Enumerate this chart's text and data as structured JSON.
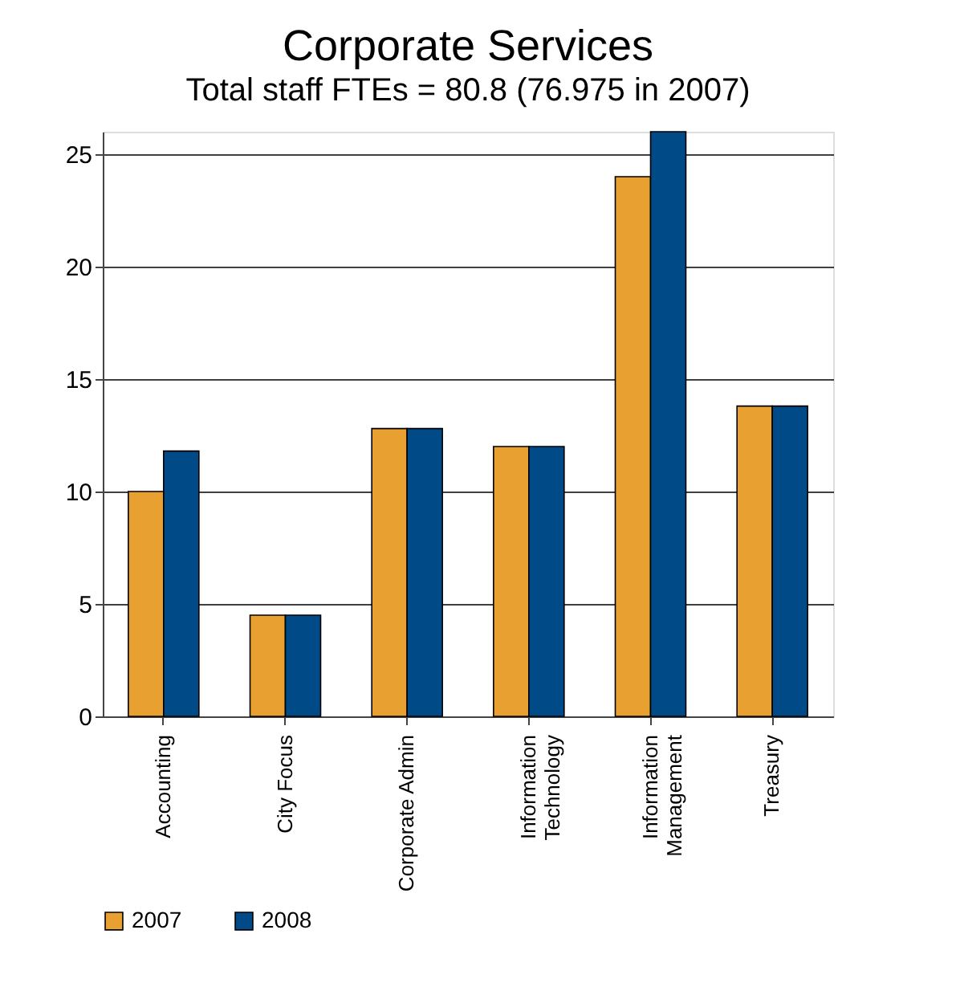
{
  "chart_data": {
    "type": "bar",
    "title": "Corporate Services",
    "subtitle": "Total staff FTEs = 80.8 (76.975 in 2007)",
    "categories": [
      "Accounting",
      "City Focus",
      "Corporate Admin",
      "Information Technology",
      "Information Management",
      "Treasury"
    ],
    "series": [
      {
        "name": "2007",
        "color": "#e8a030",
        "values": [
          10,
          4.5,
          12.8,
          12,
          24,
          13.8
        ]
      },
      {
        "name": "2008",
        "color": "#004b87",
        "values": [
          11.8,
          4.5,
          12.8,
          12,
          26,
          13.8
        ]
      }
    ],
    "ylim": [
      0,
      26
    ],
    "yticks": [
      0,
      5,
      10,
      15,
      20,
      25
    ],
    "grid": "y",
    "legend": "bottom left"
  }
}
